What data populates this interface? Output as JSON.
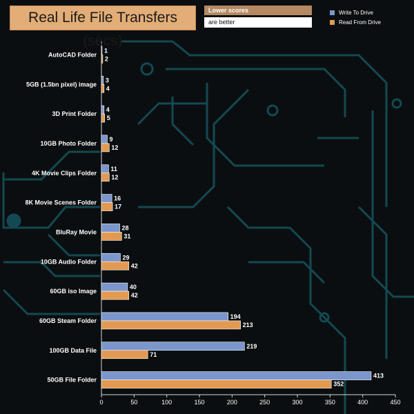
{
  "chart_data": {
    "type": "bar",
    "orientation": "horizontal",
    "title": "Real Life File Transfers (secs)",
    "note": [
      "Lower scores",
      "are better"
    ],
    "categories": [
      "AutoCAD Folder",
      "5GB (1.5bn pixel) image",
      "3D Print Folder",
      "10GB Photo Folder",
      "4K Movie Clips Folder",
      "8K Movie Scenes Folder",
      "BluRay Movie",
      "10GB Audio Folder",
      "60GB iso Image",
      "60GB Steam Folder",
      "100GB Data File",
      "50GB File Folder"
    ],
    "series": [
      {
        "name": "Write To  Drive",
        "color": "#7b96cc",
        "values": [
          1,
          3,
          4,
          9,
          11,
          16,
          28,
          29,
          40,
          194,
          219,
          413
        ]
      },
      {
        "name": "Read From  Drive",
        "color": "#e29a52",
        "values": [
          2,
          4,
          5,
          12,
          12,
          17,
          31,
          42,
          42,
          213,
          71,
          352
        ]
      }
    ],
    "xlim": [
      0,
      450
    ],
    "xticks": [
      0,
      50,
      100,
      150,
      200,
      250,
      300,
      350,
      400,
      450
    ],
    "xlabel": "",
    "ylabel": "",
    "legend_position": "top-right",
    "grid": false
  }
}
